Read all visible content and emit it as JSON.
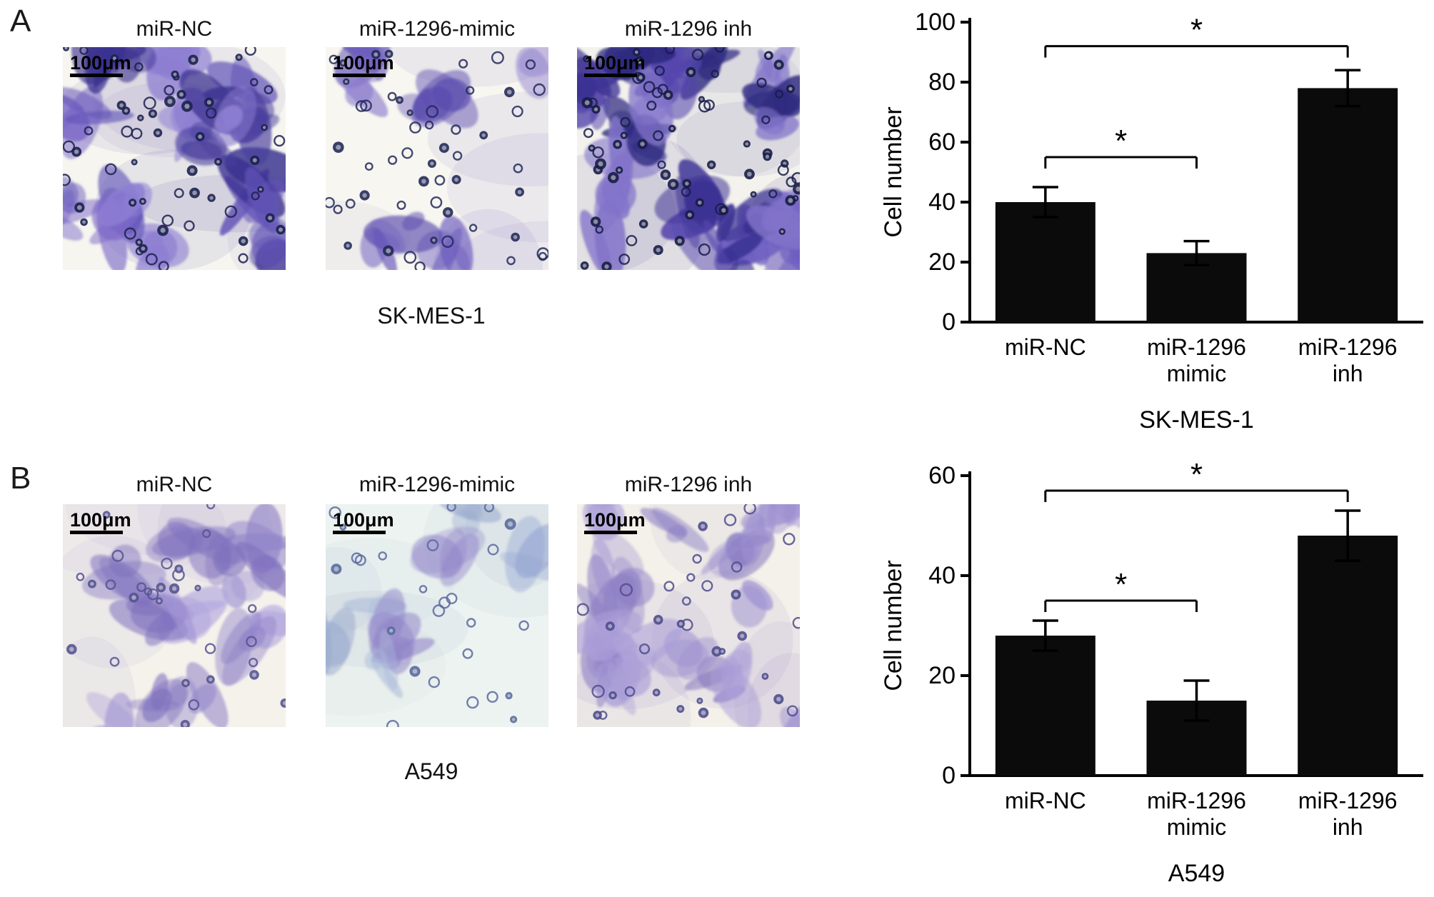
{
  "figure": {
    "panels": [
      {
        "label": "A",
        "cell_line": "SK-MES-1",
        "images": [
          {
            "title": "miR-NC",
            "scale_bar": "100μm"
          },
          {
            "title": "miR-1296-mimic",
            "scale_bar": "100μm"
          },
          {
            "title": "miR-1296 inh",
            "scale_bar": "100μm"
          }
        ]
      },
      {
        "label": "B",
        "cell_line": "A549",
        "images": [
          {
            "title": "miR-NC",
            "scale_bar": "100μm"
          },
          {
            "title": "miR-1296-mimic",
            "scale_bar": "100μm"
          },
          {
            "title": "miR-1296 inh",
            "scale_bar": "100μm"
          }
        ]
      }
    ]
  },
  "chart_data": [
    {
      "type": "bar",
      "categories": [
        "miR-NC",
        "miR-1296 mimic",
        "miR-1296 inh"
      ],
      "values": [
        40,
        23,
        78
      ],
      "errors": [
        5,
        4,
        6
      ],
      "title": "",
      "xlabel": "SK-MES-1",
      "ylabel": "Cell number",
      "ylim": [
        0,
        100
      ],
      "yticks": [
        0,
        20,
        40,
        60,
        80,
        100
      ],
      "bar_color": "#0b0b0b",
      "grid": false,
      "significance": [
        {
          "from": 0,
          "to": 1,
          "y": 55,
          "label": "*"
        },
        {
          "from": 0,
          "to": 2,
          "y": 92,
          "label": "*"
        }
      ]
    },
    {
      "type": "bar",
      "categories": [
        "miR-NC",
        "miR-1296 mimic",
        "miR-1296 inh"
      ],
      "values": [
        28,
        15,
        48
      ],
      "errors": [
        3,
        4,
        5
      ],
      "title": "",
      "xlabel": "A549",
      "ylabel": "Cell number",
      "ylim": [
        0,
        60
      ],
      "yticks": [
        0,
        20,
        40,
        60
      ],
      "bar_color": "#0b0b0b",
      "grid": false,
      "significance": [
        {
          "from": 0,
          "to": 1,
          "y": 35,
          "label": "*"
        },
        {
          "from": 0,
          "to": 2,
          "y": 57,
          "label": "*"
        }
      ]
    }
  ]
}
